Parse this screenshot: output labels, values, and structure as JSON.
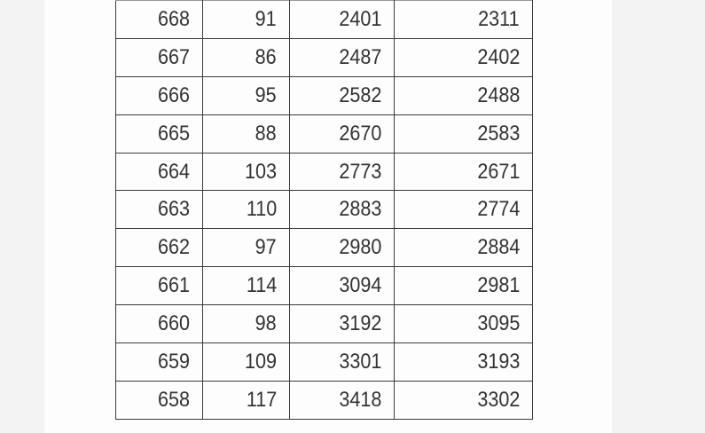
{
  "table": {
    "rows": [
      [
        "668",
        "91",
        "2401",
        "2311"
      ],
      [
        "667",
        "86",
        "2487",
        "2402"
      ],
      [
        "666",
        "95",
        "2582",
        "2488"
      ],
      [
        "665",
        "88",
        "2670",
        "2583"
      ],
      [
        "664",
        "103",
        "2773",
        "2671"
      ],
      [
        "663",
        "110",
        "2883",
        "2774"
      ],
      [
        "662",
        "97",
        "2980",
        "2884"
      ],
      [
        "661",
        "114",
        "3094",
        "2981"
      ],
      [
        "660",
        "98",
        "3192",
        "3095"
      ],
      [
        "659",
        "109",
        "3301",
        "3193"
      ],
      [
        "658",
        "117",
        "3418",
        "3302"
      ]
    ]
  }
}
